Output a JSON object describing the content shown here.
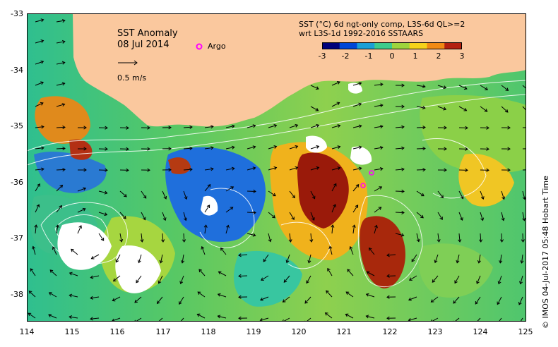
{
  "title": "SST Anomaly",
  "date": "08 Jul 2014",
  "vector_legend": "0.5 m/s",
  "argo_label": "Argo",
  "product_line1": "SST (°C) 6d ngt-only comp, L3S-6d QL>=2",
  "product_line2": "wrt L3S-1d 1992-2016 SSTAARS",
  "footer": "© IMOS 04-Jul-2017 05:48 Hobart Time",
  "colorbar": {
    "ticks": [
      "-3",
      "-2",
      "-1",
      "0",
      "1",
      "2",
      "3"
    ],
    "colors": [
      "#00007a",
      "#0047d6",
      "#1aa0d6",
      "#3ccc8c",
      "#9ed43c",
      "#f5d21a",
      "#f08a14",
      "#b32010"
    ]
  },
  "axes": {
    "x_ticks": [
      "114",
      "115",
      "116",
      "117",
      "118",
      "119",
      "120",
      "121",
      "122",
      "123",
      "124",
      "125"
    ],
    "y_ticks": [
      "-33",
      "-34",
      "-35",
      "-36",
      "-37",
      "-38"
    ]
  },
  "colors": {
    "land": "#fac89e",
    "argo": "#ff00ff",
    "contour": "#ffffff"
  }
}
